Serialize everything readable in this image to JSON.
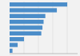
{
  "chart_data": {
    "type": "bar",
    "orientation": "horizontal",
    "categories": [
      null,
      null,
      null,
      null,
      null,
      null,
      null,
      null,
      null
    ],
    "values": [
      100,
      82,
      62,
      59,
      57,
      55,
      25,
      14,
      5
    ],
    "color": "#4b8dc9",
    "xlim": [
      0,
      118
    ],
    "xticks": [
      25,
      50,
      75,
      100
    ],
    "grid": true,
    "tick_labels": false
  }
}
